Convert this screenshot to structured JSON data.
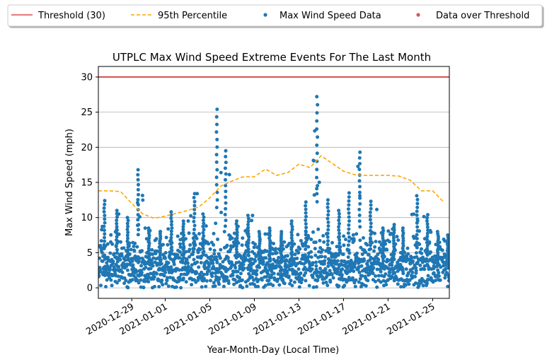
{
  "chart_data": {
    "type": "scatter",
    "title": "UTPLC Max Wind Speed Extreme Events For The Last Month",
    "xlabel": "Year-Month-Day (Local Time)",
    "ylabel": "Max Wind Speed (mph)",
    "x_range": [
      "2020-12-26",
      "2021-01-26T12:00"
    ],
    "ylim": [
      -1.5,
      31.5
    ],
    "y_ticks": [
      0,
      5,
      10,
      15,
      20,
      25,
      30
    ],
    "x_ticks": [
      "2020-12-29",
      "2021-01-01",
      "2021-01-05",
      "2021-01-09",
      "2021-01-13",
      "2021-01-17",
      "2021-01-21",
      "2021-01-25"
    ],
    "grid": "horizontal",
    "legend_placement": "top, above plot",
    "colors": {
      "threshold": "#e8807f",
      "threshold_line": "#d64b4b",
      "percentile": "#ffa500",
      "scatter": "#1f77b4",
      "over_threshold": "#cd5c5c"
    },
    "legend": [
      {
        "label": "Threshold (30)",
        "kind": "line"
      },
      {
        "label": "95th Percentile",
        "kind": "dashed"
      },
      {
        "label": "Max Wind Speed Data",
        "kind": "dot"
      },
      {
        "label": "Data over Threshold",
        "kind": "dot-red"
      }
    ],
    "threshold": 30,
    "percentile_series": {
      "name": "95th Percentile",
      "x": [
        "2020-12-26",
        "2020-12-27",
        "2020-12-28",
        "2020-12-29",
        "2020-12-30",
        "2020-12-31",
        "2021-01-01",
        "2021-01-02",
        "2021-01-03",
        "2021-01-04",
        "2021-01-05",
        "2021-01-06",
        "2021-01-07",
        "2021-01-08",
        "2021-01-09",
        "2021-01-10",
        "2021-01-11",
        "2021-01-12",
        "2021-01-13",
        "2021-01-14",
        "2021-01-15",
        "2021-01-16",
        "2021-01-17",
        "2021-01-18",
        "2021-01-19",
        "2021-01-20",
        "2021-01-21",
        "2021-01-22",
        "2021-01-23",
        "2021-01-24",
        "2021-01-25",
        "2021-01-26"
      ],
      "y": [
        13.8,
        13.8,
        13.7,
        12.0,
        10.5,
        9.9,
        10.2,
        10.6,
        11.0,
        11.5,
        12.8,
        14.5,
        15.2,
        15.8,
        15.8,
        16.9,
        16.0,
        16.4,
        17.6,
        17.1,
        18.8,
        17.7,
        16.6,
        16.1,
        16.0,
        16.0,
        16.0,
        15.9,
        15.3,
        13.8,
        13.8,
        12.2
      ]
    },
    "scatter_daily_max": {
      "name": "Max Wind Speed Data",
      "x": [
        "2020-12-26",
        "2020-12-27",
        "2020-12-28",
        "2020-12-29",
        "2020-12-30",
        "2020-12-31",
        "2021-01-01",
        "2021-01-02",
        "2021-01-03",
        "2021-01-04",
        "2021-01-05",
        "2021-01-06",
        "2021-01-07",
        "2021-01-08",
        "2021-01-09",
        "2021-01-10",
        "2021-01-11",
        "2021-01-12",
        "2021-01-13",
        "2021-01-14",
        "2021-01-15",
        "2021-01-16",
        "2021-01-17",
        "2021-01-18",
        "2021-01-19",
        "2021-01-20",
        "2021-01-21",
        "2021-01-22",
        "2021-01-23",
        "2021-01-24",
        "2021-01-25",
        "2021-01-26"
      ],
      "y": [
        12.4,
        11.0,
        10.0,
        16.8,
        8.5,
        8.0,
        10.8,
        9.5,
        13.4,
        10.5,
        25.4,
        19.5,
        9.5,
        10.3,
        8.0,
        8.5,
        8.0,
        9.5,
        12.2,
        27.2,
        12.5,
        11.0,
        13.5,
        19.3,
        12.3,
        8.5,
        9.0,
        8.5,
        13.1,
        10.4,
        8.0,
        7.5
      ]
    },
    "over_threshold_count": 0
  }
}
